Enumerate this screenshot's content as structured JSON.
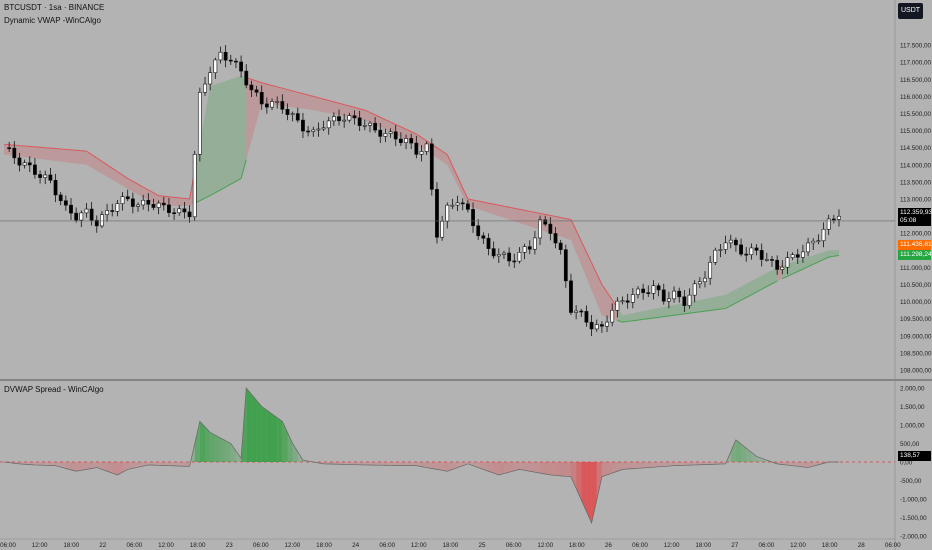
{
  "header": {
    "symbol": "BTCUSDT · 1sa · BINANCE",
    "indicator": "Dynamic VWAP -WinCAlgo",
    "currency_button": "USDT"
  },
  "lower_pane": {
    "title": "DVWAP Spread - WinCAlgo"
  },
  "price_tags": {
    "last": {
      "value": "112.359,93",
      "timer": "05:08",
      "color": "#000000"
    },
    "upper_band": {
      "value": "111.436,81",
      "color": "#ff6d00"
    },
    "lower_band": {
      "value": "111.298,24",
      "color": "#26a641"
    },
    "spread": {
      "value": "138,57",
      "color": "#000000"
    }
  },
  "colors": {
    "bull": "#2e9e3c",
    "bear": "#e0464a",
    "up_candle": "#ffffff",
    "down_candle": "#000000",
    "background": "#b3b3b3"
  },
  "chart_data": [
    {
      "type": "candlestick",
      "title": "BTCUSDT · 1sa · BINANCE",
      "ylim": [
        108000,
        118000
      ],
      "y_ticks": [
        "117.500,00",
        "117.000,00",
        "116.500,00",
        "116.000,00",
        "115.500,00",
        "115.000,00",
        "114.500,00",
        "114.000,00",
        "113.500,00",
        "113.000,00",
        "112.500,00",
        "112.000,00",
        "111.500,00",
        "111.000,00",
        "110.500,00",
        "110.000,00",
        "109.500,00",
        "109.000,00",
        "108.500,00",
        "108.000,00"
      ],
      "x_ticks": [
        "06:00",
        "12:00",
        "18:00",
        "22",
        "06:00",
        "12:00",
        "18:00",
        "23",
        "06:00",
        "12:00",
        "18:00",
        "24",
        "06:00",
        "12:00",
        "18:00",
        "25",
        "06:00",
        "12:00",
        "18:00",
        "26",
        "06:00",
        "12:00",
        "18:00",
        "27",
        "06:00",
        "12:00",
        "18:00",
        "28",
        "06:00"
      ],
      "close_path": [
        [
          0,
          114500
        ],
        [
          3,
          114100
        ],
        [
          6,
          113800
        ],
        [
          9,
          113500
        ],
        [
          12,
          112700
        ],
        [
          14,
          112500
        ],
        [
          16,
          112600
        ],
        [
          18,
          112300
        ],
        [
          20,
          112600
        ],
        [
          22,
          112900
        ],
        [
          24,
          113000
        ],
        [
          26,
          112800
        ],
        [
          28,
          112900
        ],
        [
          30,
          112800
        ],
        [
          32,
          112700
        ],
        [
          34,
          112600
        ],
        [
          36,
          112600
        ],
        [
          38,
          116000
        ],
        [
          40,
          116800
        ],
        [
          42,
          117200
        ],
        [
          44,
          117100
        ],
        [
          46,
          116700
        ],
        [
          48,
          116200
        ],
        [
          50,
          115800
        ],
        [
          52,
          115800
        ],
        [
          54,
          115700
        ],
        [
          56,
          115400
        ],
        [
          58,
          115100
        ],
        [
          60,
          114900
        ],
        [
          62,
          115200
        ],
        [
          64,
          115300
        ],
        [
          66,
          115400
        ],
        [
          68,
          115300
        ],
        [
          70,
          115200
        ],
        [
          72,
          115000
        ],
        [
          74,
          114900
        ],
        [
          76,
          114800
        ],
        [
          78,
          114700
        ],
        [
          80,
          114400
        ],
        [
          82,
          114500
        ],
        [
          84,
          112000
        ],
        [
          86,
          112700
        ],
        [
          88,
          113000
        ],
        [
          90,
          112600
        ],
        [
          92,
          112000
        ],
        [
          94,
          111500
        ],
        [
          96,
          111400
        ],
        [
          98,
          111200
        ],
        [
          100,
          111400
        ],
        [
          102,
          111600
        ],
        [
          104,
          112300
        ],
        [
          106,
          112100
        ],
        [
          108,
          111400
        ],
        [
          110,
          109800
        ],
        [
          112,
          109600
        ],
        [
          114,
          109300
        ],
        [
          116,
          109200
        ],
        [
          118,
          109800
        ],
        [
          120,
          110000
        ],
        [
          122,
          110200
        ],
        [
          124,
          110300
        ],
        [
          126,
          110400
        ],
        [
          128,
          110100
        ],
        [
          130,
          110200
        ],
        [
          132,
          110000
        ],
        [
          134,
          110400
        ],
        [
          136,
          110800
        ],
        [
          138,
          111400
        ],
        [
          140,
          111800
        ],
        [
          142,
          111600
        ],
        [
          144,
          111400
        ],
        [
          146,
          111500
        ],
        [
          148,
          111200
        ],
        [
          150,
          111000
        ],
        [
          152,
          111200
        ],
        [
          154,
          111400
        ],
        [
          156,
          111600
        ],
        [
          158,
          111900
        ],
        [
          160,
          112300
        ],
        [
          162,
          112600
        ]
      ],
      "series": [
        {
          "name": "Dynamic VWAP upper",
          "values": [
            [
              0,
              114600
            ],
            [
              16,
              114400
            ],
            [
              24,
              113600
            ],
            [
              30,
              113100
            ],
            [
              36,
              113000
            ],
            [
              40,
              116300
            ],
            [
              46,
              116600
            ],
            [
              50,
              116400
            ],
            [
              60,
              116000
            ],
            [
              70,
              115600
            ],
            [
              80,
              114900
            ],
            [
              86,
              114300
            ],
            [
              90,
              113000
            ],
            [
              100,
              112700
            ],
            [
              110,
              112400
            ],
            [
              116,
              110500
            ],
            [
              120,
              109600
            ],
            [
              130,
              109900
            ],
            [
              140,
              110200
            ],
            [
              150,
              111000
            ],
            [
              160,
              111500
            ],
            [
              162,
              111500
            ]
          ]
        },
        {
          "name": "Dynamic VWAP lower",
          "values": [
            [
              0,
              114300
            ],
            [
              16,
              114000
            ],
            [
              24,
              113300
            ],
            [
              30,
              112800
            ],
            [
              36,
              112800
            ],
            [
              40,
              113100
            ],
            [
              46,
              113600
            ],
            [
              50,
              115800
            ],
            [
              60,
              115600
            ],
            [
              70,
              115300
            ],
            [
              80,
              114600
            ],
            [
              86,
              114000
            ],
            [
              90,
              112800
            ],
            [
              100,
              112300
            ],
            [
              110,
              111800
            ],
            [
              116,
              109600
            ],
            [
              120,
              109400
            ],
            [
              130,
              109600
            ],
            [
              140,
              109800
            ],
            [
              150,
              110600
            ],
            [
              160,
              111300
            ],
            [
              162,
              111350
            ]
          ]
        }
      ]
    },
    {
      "type": "area",
      "title": "DVWAP Spread - WinCAlgo",
      "ylim": [
        -2000,
        2000
      ],
      "y_ticks": [
        "2.000,00",
        "1.500,00",
        "1.000,00",
        "500,00",
        "0,00",
        "-500,00",
        "-1.000,00",
        "-1.500,00",
        "-2.000,00"
      ],
      "x_ticks": [
        "06:00",
        "12:00",
        "18:00",
        "22",
        "06:00",
        "12:00",
        "18:00",
        "23",
        "06:00",
        "12:00",
        "18:00",
        "24",
        "06:00",
        "12:00",
        "18:00",
        "25",
        "06:00",
        "12:00",
        "18:00",
        "26",
        "06:00",
        "12:00",
        "18:00",
        "27",
        "06:00",
        "12:00",
        "18:00",
        "28",
        "06:00"
      ],
      "values": [
        [
          0,
          0
        ],
        [
          3,
          -50
        ],
        [
          6,
          -80
        ],
        [
          10,
          -100
        ],
        [
          14,
          -250
        ],
        [
          18,
          -150
        ],
        [
          22,
          -350
        ],
        [
          24,
          -200
        ],
        [
          28,
          -80
        ],
        [
          32,
          -100
        ],
        [
          36,
          -120
        ],
        [
          38,
          1100
        ],
        [
          40,
          800
        ],
        [
          44,
          500
        ],
        [
          46,
          100
        ],
        [
          47,
          2000
        ],
        [
          50,
          1500
        ],
        [
          54,
          1100
        ],
        [
          56,
          500
        ],
        [
          58,
          50
        ],
        [
          62,
          -50
        ],
        [
          70,
          -80
        ],
        [
          80,
          -100
        ],
        [
          86,
          -250
        ],
        [
          90,
          -50
        ],
        [
          96,
          -350
        ],
        [
          100,
          -200
        ],
        [
          106,
          -350
        ],
        [
          110,
          -400
        ],
        [
          114,
          -1650
        ],
        [
          116,
          -400
        ],
        [
          120,
          -200
        ],
        [
          130,
          -100
        ],
        [
          140,
          -50
        ],
        [
          142,
          600
        ],
        [
          146,
          150
        ],
        [
          150,
          -50
        ],
        [
          156,
          -150
        ],
        [
          160,
          0
        ],
        [
          162,
          0
        ]
      ]
    }
  ]
}
